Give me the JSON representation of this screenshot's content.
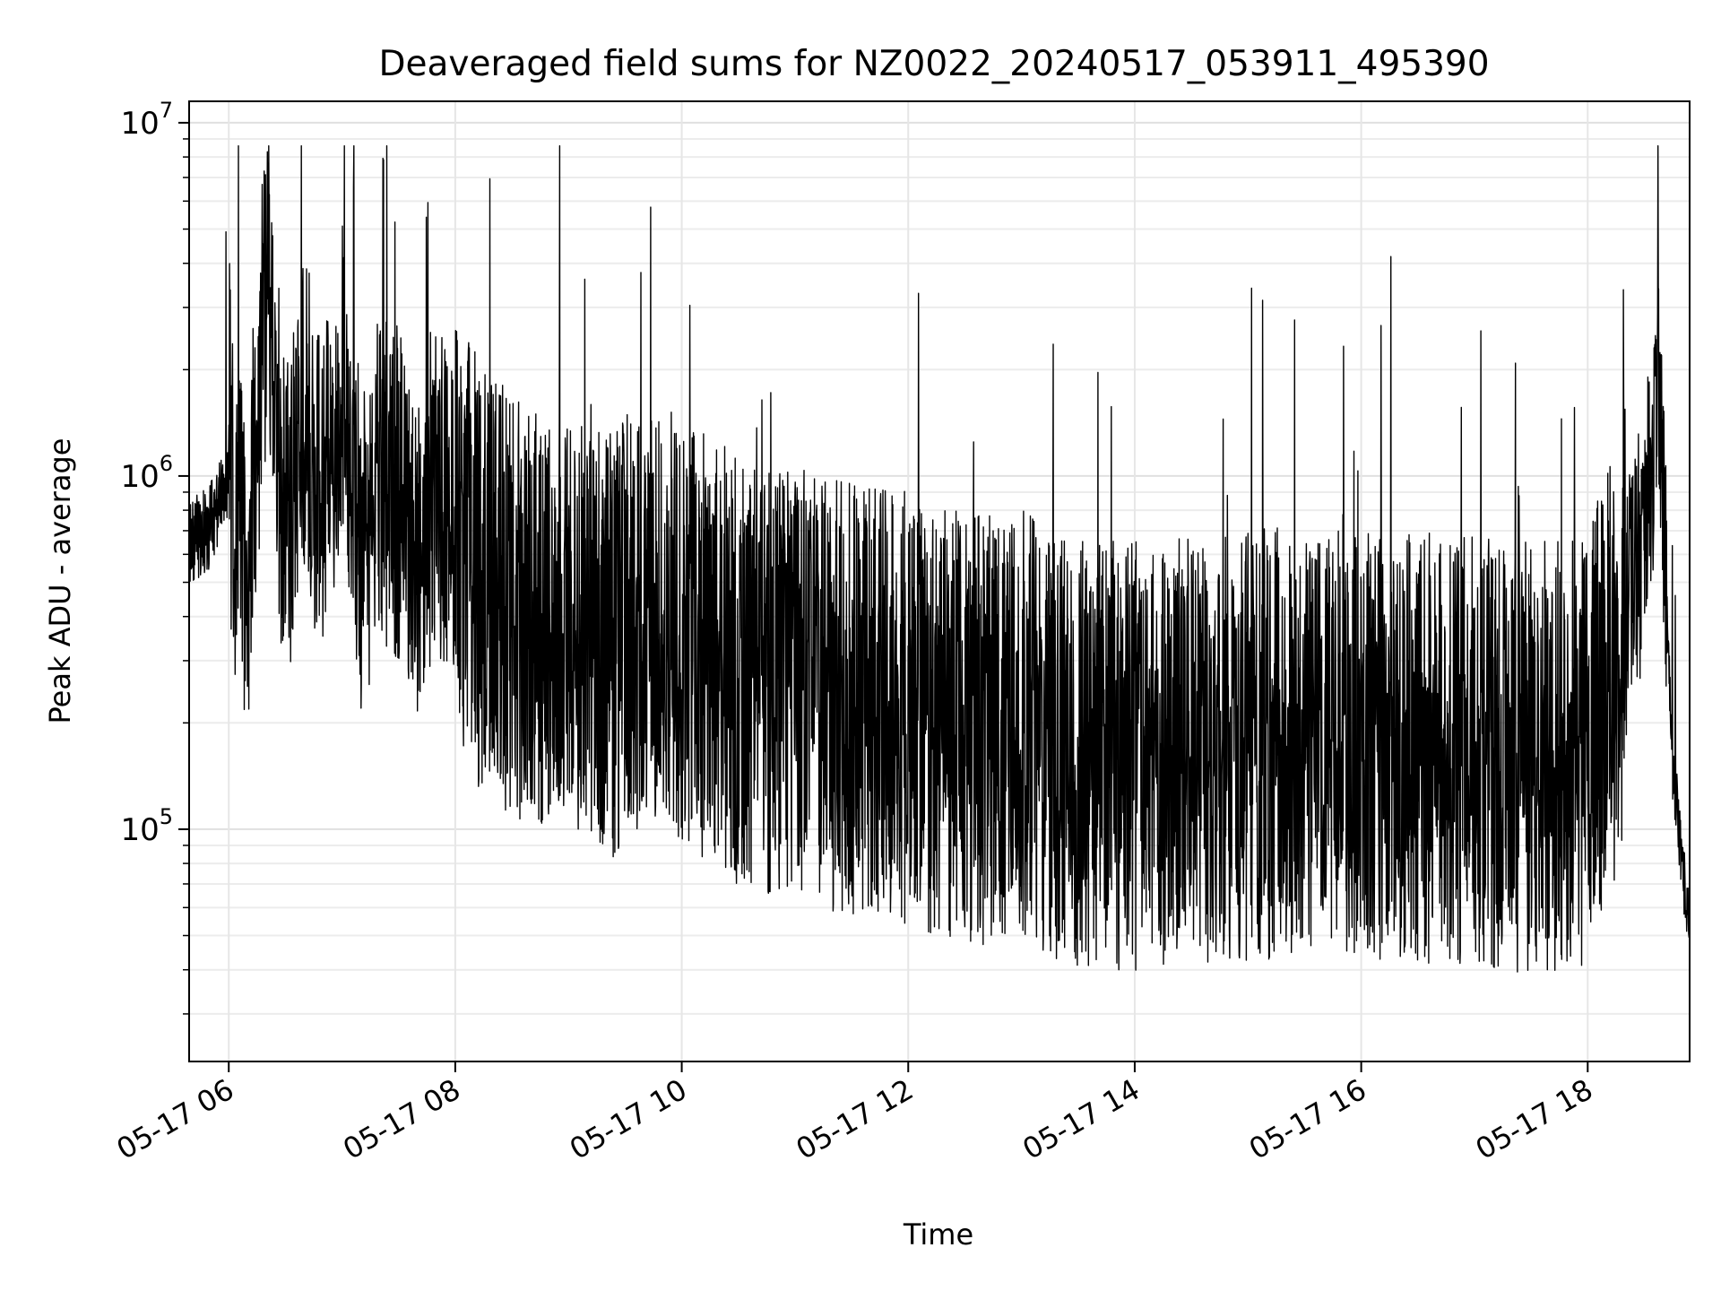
{
  "chart_data": {
    "type": "line",
    "title": "Deaveraged field sums for NZ0022_20240517_053911_495390",
    "xlabel": "Time",
    "ylabel": "Peak ADU - average",
    "yscale": "log",
    "ylim": [
      22000,
      11500000
    ],
    "xlim": [
      "05-17 05:39",
      "05-17 18:54"
    ],
    "grid": true,
    "line_color": "#000000",
    "x_ticks": [
      "05-17 06",
      "05-17 08",
      "05-17 10",
      "05-17 12",
      "05-17 14",
      "05-17 16",
      "05-17 18"
    ],
    "y_ticks": [
      {
        "base": "10",
        "exp": "5",
        "value": 100000
      },
      {
        "base": "10",
        "exp": "6",
        "value": 1000000
      },
      {
        "base": "10",
        "exp": "7",
        "value": 10000000
      }
    ],
    "series": [
      {
        "points": [
          [
            "05-17 05:40",
            650000
          ],
          [
            "05-17 05:50",
            720000
          ],
          [
            "05-17 06:00",
            1000000
          ],
          [
            "05-17 06:10",
            550000
          ],
          [
            "05-17 06:20",
            3500000
          ],
          [
            "05-17 06:30",
            700000
          ],
          [
            "05-17 06:40",
            1500000
          ],
          [
            "05-17 06:50",
            800000
          ],
          [
            "05-17 07:00",
            1800000
          ],
          [
            "05-17 07:10",
            600000
          ],
          [
            "05-17 07:20",
            1000000
          ],
          [
            "05-17 07:30",
            900000
          ],
          [
            "05-17 07:40",
            600000
          ],
          [
            "05-17 07:50",
            1000000
          ],
          [
            "05-17 08:00",
            650000
          ],
          [
            "05-17 08:20",
            480000
          ],
          [
            "05-17 08:40",
            420000
          ],
          [
            "05-17 09:00",
            380000
          ],
          [
            "05-17 09:20",
            330000
          ],
          [
            "05-17 09:40",
            400000
          ],
          [
            "05-17 10:00",
            360000
          ],
          [
            "05-17 10:20",
            310000
          ],
          [
            "05-17 10:40",
            250000
          ],
          [
            "05-17 11:00",
            270000
          ],
          [
            "05-17 11:20",
            240000
          ],
          [
            "05-17 11:40",
            230000
          ],
          [
            "05-17 12:00",
            220000
          ],
          [
            "05-17 12:20",
            200000
          ],
          [
            "05-17 12:40",
            190000
          ],
          [
            "05-17 13:00",
            200000
          ],
          [
            "05-17 13:20",
            170000
          ],
          [
            "05-17 13:40",
            160000
          ],
          [
            "05-17 14:00",
            160000
          ],
          [
            "05-17 14:20",
            170000
          ],
          [
            "05-17 14:40",
            165000
          ],
          [
            "05-17 15:00",
            170000
          ],
          [
            "05-17 15:20",
            180000
          ],
          [
            "05-17 15:40",
            180000
          ],
          [
            "05-17 16:00",
            175000
          ],
          [
            "05-17 16:20",
            170000
          ],
          [
            "05-17 16:40",
            170000
          ],
          [
            "05-17 17:00",
            170000
          ],
          [
            "05-17 17:20",
            160000
          ],
          [
            "05-17 17:40",
            160000
          ],
          [
            "05-17 18:00",
            170000
          ],
          [
            "05-17 18:15",
            300000
          ],
          [
            "05-17 18:30",
            700000
          ],
          [
            "05-17 18:38",
            1500000
          ],
          [
            "05-17 18:45",
            150000
          ],
          [
            "05-17 18:54",
            50000
          ]
        ]
      }
    ]
  }
}
